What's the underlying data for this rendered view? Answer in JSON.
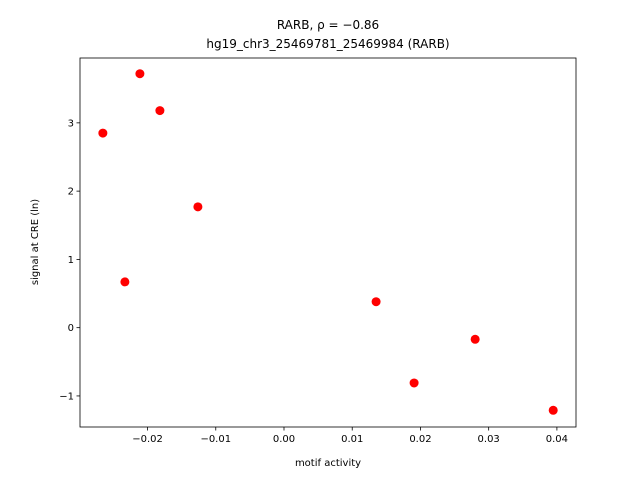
{
  "chart_data": {
    "type": "scatter",
    "title": "RARB, ρ = −0.86",
    "subtitle": "hg19_chr3_25469781_25469984 (RARB)",
    "x_label": "motif activity",
    "y_label": "signal at CRE (ln)",
    "color": "#ff0000",
    "x": [
      -0.02655,
      -0.02112,
      -0.01819,
      -0.02332,
      -0.01262,
      0.0135,
      0.01907,
      0.02802,
      0.03946
    ],
    "values": [
      2.85,
      3.72,
      3.18,
      0.67,
      1.77,
      0.38,
      -0.81,
      -0.17,
      -1.21
    ],
    "xlim": [
      -0.0299,
      0.0428
    ],
    "ylim": [
      -1.455,
      3.95
    ],
    "xticks": [
      {
        "value": -0.02,
        "label": "−0.02"
      },
      {
        "value": -0.01,
        "label": "−0.01"
      },
      {
        "value": 0,
        "label": "0.00"
      },
      0.01,
      0.02,
      0.03,
      0.04
    ],
    "yticks": [
      {
        "value": -1,
        "label": "−1"
      },
      0,
      1,
      2,
      3
    ]
  }
}
